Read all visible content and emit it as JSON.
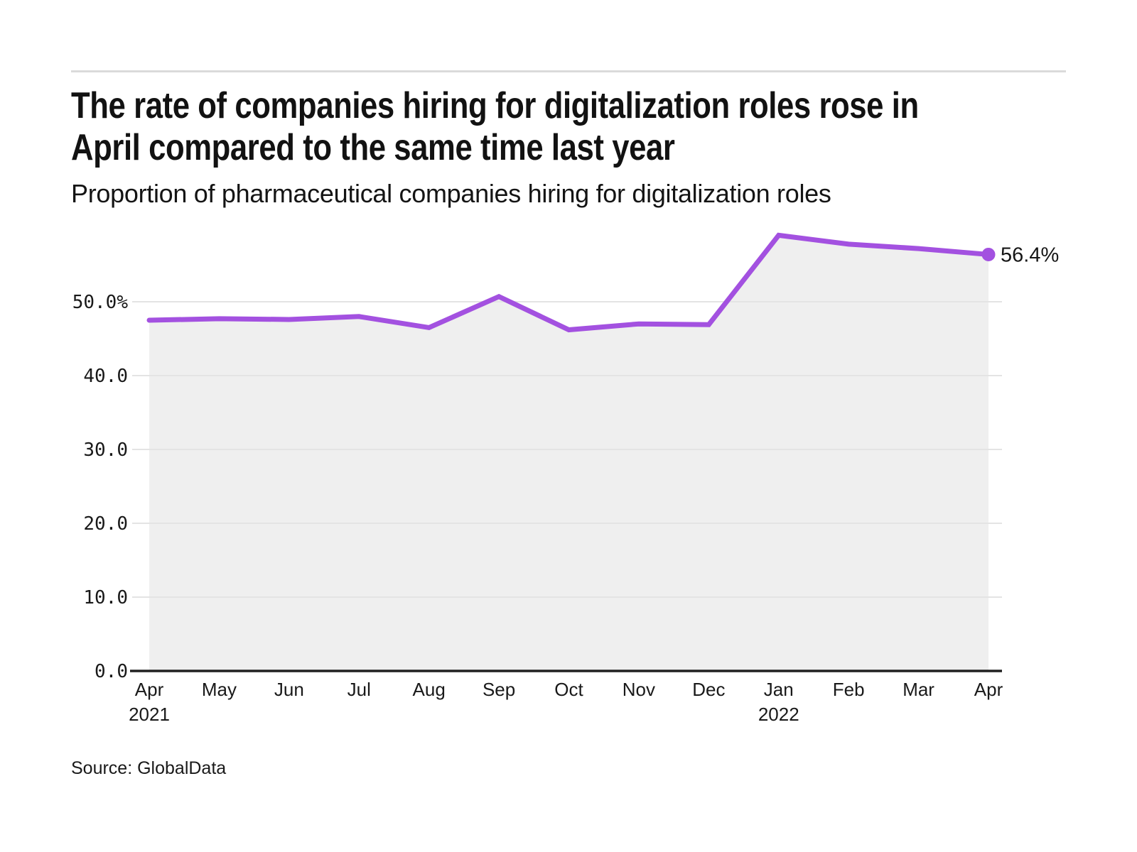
{
  "header": {
    "title_line1": "The rate of companies hiring for digitalization roles rose in",
    "title_line2": "April compared to the same time last year",
    "subtitle": "Proportion of pharmaceutical companies hiring for digitalization roles"
  },
  "footer": {
    "source": "Source: GlobalData"
  },
  "chart_data": {
    "type": "area",
    "title": "Proportion of pharmaceutical companies hiring for digitalization roles",
    "x": [
      "Apr 2021",
      "May 2021",
      "Jun 2021",
      "Jul 2021",
      "Aug 2021",
      "Sep 2021",
      "Oct 2021",
      "Nov 2021",
      "Dec 2021",
      "Jan 2022",
      "Feb 2022",
      "Mar 2022",
      "Apr 2022"
    ],
    "x_tick_labels": [
      {
        "month": "Apr",
        "year": "2021"
      },
      {
        "month": "May"
      },
      {
        "month": "Jun"
      },
      {
        "month": "Jul"
      },
      {
        "month": "Aug"
      },
      {
        "month": "Sep"
      },
      {
        "month": "Oct"
      },
      {
        "month": "Nov"
      },
      {
        "month": "Dec"
      },
      {
        "month": "Jan",
        "year": "2022"
      },
      {
        "month": "Feb"
      },
      {
        "month": "Mar"
      },
      {
        "month": "Apr"
      }
    ],
    "values": [
      47.5,
      47.7,
      47.6,
      48.0,
      46.5,
      50.7,
      46.2,
      47.0,
      46.9,
      59.0,
      57.8,
      57.2,
      56.4
    ],
    "unit": "%",
    "ylim": [
      0,
      62
    ],
    "yticks": [
      0,
      10,
      20,
      30,
      40,
      50
    ],
    "ytick_labels": [
      "0.0",
      "10.0",
      "20.0",
      "30.0",
      "40.0",
      "50.0%"
    ],
    "end_point_label": "56.4%",
    "grid": true,
    "legend": "none",
    "colors": {
      "line": "#a351e0",
      "area": "#efefef",
      "grid": "#e4e4e4",
      "axis": "#202020",
      "text": "#191919"
    }
  }
}
